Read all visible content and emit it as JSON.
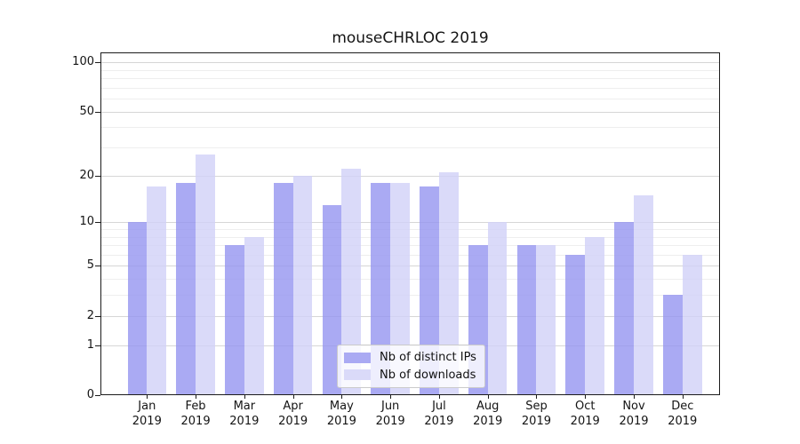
{
  "chart_data": {
    "type": "bar",
    "title": "mouseCHRLOC 2019",
    "categories": [
      "Jan",
      "Feb",
      "Mar",
      "Apr",
      "May",
      "Jun",
      "Jul",
      "Aug",
      "Sep",
      "Oct",
      "Nov",
      "Dec"
    ],
    "category_year": "2019",
    "series": [
      {
        "name": "Nb of distinct IPs",
        "color": "#aaaaf3",
        "values": [
          10,
          18,
          7,
          18,
          13,
          18,
          17,
          7,
          7,
          6,
          10,
          3
        ]
      },
      {
        "name": "Nb of downloads",
        "color": "#dadaf9",
        "values": [
          17,
          27,
          8,
          20,
          22,
          18,
          21,
          10,
          7,
          8,
          15,
          6
        ]
      }
    ],
    "y_axis": {
      "scale": "log10(1+value)",
      "tick_labels": [
        100,
        50,
        20,
        10,
        5,
        2,
        1,
        0
      ],
      "minor_gridlines": [
        90,
        80,
        70,
        60,
        40,
        30,
        9,
        8,
        7,
        6,
        4,
        3
      ],
      "range_top": 130
    },
    "grid": true,
    "legend_position": "inside-bottom-center",
    "colors": {
      "major_grid": "#d6d6d6",
      "minor_grid": "#eeeeee",
      "spine": "#1c1c1c",
      "text": "#141414",
      "background": "#ffffff"
    }
  }
}
